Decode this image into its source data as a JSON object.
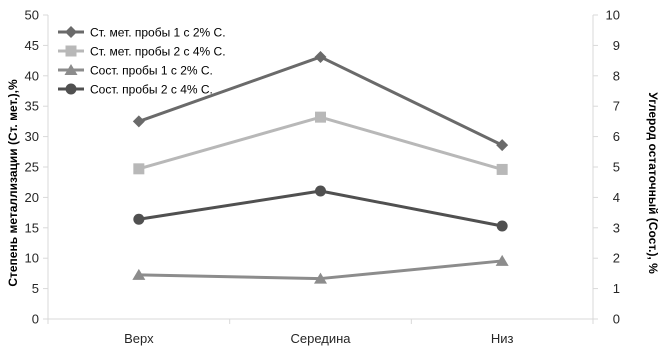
{
  "chart_data": {
    "type": "line",
    "categories": [
      "Верх",
      "Середина",
      "Низ"
    ],
    "series": [
      {
        "name": "Ст. мет. пробы 1 с 2% С.",
        "axis": "left",
        "marker": "diamond",
        "color": "#6a6a6a",
        "values": [
          32.5,
          43.1,
          28.6
        ]
      },
      {
        "name": "Ст. мет. пробы 2 с 4% С.",
        "axis": "left",
        "marker": "square",
        "color": "#b8b8b8",
        "values": [
          24.7,
          33.2,
          24.6
        ]
      },
      {
        "name": "Сост. пробы 1 с 2% С.",
        "axis": "right",
        "marker": "triangle",
        "color": "#8c8c8c",
        "values": [
          1.45,
          1.33,
          1.91
        ]
      },
      {
        "name": "Сост. пробы 2 с 4% С.",
        "axis": "right",
        "marker": "circle",
        "color": "#505050",
        "values": [
          3.28,
          4.21,
          3.06
        ]
      }
    ],
    "ylabel": "Степень металлизации (Ст. мет.),%",
    "y2label": "Углерод остаточный (Сост.), %",
    "ylim": [
      0,
      50
    ],
    "yticks": [
      0,
      5,
      10,
      15,
      20,
      25,
      30,
      35,
      40,
      45,
      50
    ],
    "y2lim": [
      0,
      10
    ],
    "y2ticks": [
      0,
      1,
      2,
      3,
      4,
      5,
      6,
      7,
      8,
      9,
      10
    ],
    "grid": false,
    "legend_position": "top-left",
    "axis_color": "#d9d9d9"
  }
}
